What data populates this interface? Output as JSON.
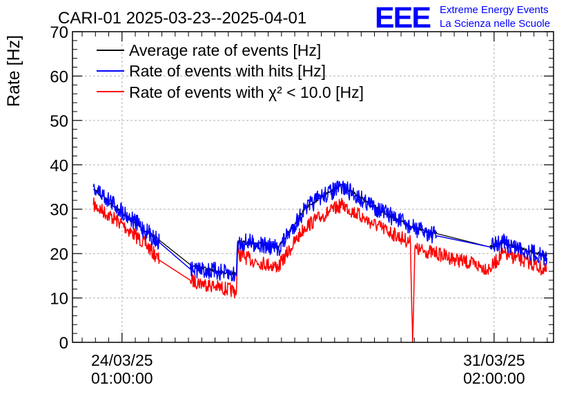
{
  "header": {
    "title": "CARI-01 2025-03-23--2025-04-01",
    "logo_text": "EEE",
    "org_line1": "Extreme Energy Events",
    "org_line2": "La Scienza nelle Scuole"
  },
  "colors": {
    "average": "#000000",
    "hits": "#0000ff",
    "chi2": "#ff0000",
    "logo": "#0000ff",
    "grid": "#b0b0b0"
  },
  "chart_data": {
    "type": "line",
    "title": "CARI-01 2025-03-23--2025-04-01",
    "xlabel": "",
    "ylabel": "Rate [Hz]",
    "ylim": [
      0,
      70
    ],
    "xlim": [
      "2025-03-23T02:30",
      "2025-04-01T05:00"
    ],
    "grid": true,
    "legend_position": "top-left",
    "y_ticks": [
      0,
      10,
      20,
      30,
      40,
      50,
      60,
      70
    ],
    "x_ticks": [
      {
        "x": "2025-03-24T01:00",
        "label_date": "24/03/25",
        "label_time": "01:00:00"
      },
      {
        "x": "2025-03-31T02:00",
        "label_date": "31/03/25",
        "label_time": "02:00:00"
      }
    ],
    "series": [
      {
        "name": "Average rate of events [Hz]",
        "color": "#000000",
        "noise": 0.4,
        "points": [
          [
            "2025-03-23T12:00",
            34.5
          ],
          [
            "2025-03-24T00:00",
            29.5
          ],
          [
            "2025-03-24T12:00",
            25
          ],
          [
            "2025-03-24T18:00",
            23
          ],
          [
            "2025-03-25T08:00",
            17.5
          ],
          [
            "2025-03-25T20:00",
            16
          ],
          [
            "2025-03-26T05:00",
            15.5
          ],
          [
            "2025-03-26T05:30",
            22.5
          ],
          [
            "2025-03-26T12:00",
            22.5
          ],
          [
            "2025-03-27T00:00",
            21.5
          ],
          [
            "2025-03-27T12:00",
            30
          ],
          [
            "2025-03-27T20:00",
            33
          ],
          [
            "2025-03-28T05:00",
            35.5
          ],
          [
            "2025-03-28T18:00",
            31
          ],
          [
            "2025-03-29T12:00",
            26
          ],
          [
            "2025-03-30T00:00",
            24.5
          ],
          [
            "2025-03-31T00:00",
            21.5
          ],
          [
            "2025-03-31T06:00",
            22.5
          ],
          [
            "2025-03-31T18:00",
            20.5
          ],
          [
            "2025-04-01T02:00",
            19.5
          ]
        ]
      },
      {
        "name": "Rate of events with hits [Hz]",
        "color": "#0000ff",
        "noise": 2.0,
        "points": [
          [
            "2025-03-23T12:00",
            35
          ],
          [
            "2025-03-24T00:00",
            30
          ],
          [
            "2025-03-24T12:00",
            25
          ],
          [
            "2025-03-24T18:00",
            22.5
          ],
          [
            "2025-03-25T08:00",
            16.5
          ],
          [
            "2025-03-25T20:00",
            16
          ],
          [
            "2025-03-26T05:00",
            15
          ],
          [
            "2025-03-26T05:30",
            22.5
          ],
          [
            "2025-03-26T12:00",
            22.5
          ],
          [
            "2025-03-27T00:00",
            21
          ],
          [
            "2025-03-27T12:00",
            30
          ],
          [
            "2025-03-27T20:00",
            33
          ],
          [
            "2025-03-28T05:00",
            35
          ],
          [
            "2025-03-28T18:00",
            31
          ],
          [
            "2025-03-29T12:00",
            26
          ],
          [
            "2025-03-30T00:00",
            24
          ],
          [
            "2025-03-31T00:00",
            21.5
          ],
          [
            "2025-03-31T06:00",
            22.5
          ],
          [
            "2025-03-31T18:00",
            20.5
          ],
          [
            "2025-04-01T02:00",
            19
          ]
        ]
      },
      {
        "name": "Rate of events with χ² < 10.0 [Hz]",
        "color": "#ff0000",
        "noise": 1.6,
        "points": [
          [
            "2025-03-23T12:00",
            31
          ],
          [
            "2025-03-24T00:00",
            27
          ],
          [
            "2025-03-24T12:00",
            22
          ],
          [
            "2025-03-24T18:00",
            18.5
          ],
          [
            "2025-03-25T08:00",
            14
          ],
          [
            "2025-03-25T20:00",
            12.5
          ],
          [
            "2025-03-26T05:00",
            11.5
          ],
          [
            "2025-03-26T05:30",
            20
          ],
          [
            "2025-03-26T12:00",
            18.5
          ],
          [
            "2025-03-27T00:00",
            17
          ],
          [
            "2025-03-27T12:00",
            26
          ],
          [
            "2025-03-27T20:00",
            28.5
          ],
          [
            "2025-03-28T05:00",
            31
          ],
          [
            "2025-03-28T18:00",
            27
          ],
          [
            "2025-03-29T12:00",
            22.5
          ],
          [
            "2025-03-29T13:00",
            0
          ],
          [
            "2025-03-29T14:00",
            21
          ],
          [
            "2025-03-30T00:00",
            20
          ],
          [
            "2025-03-31T00:00",
            16.5
          ],
          [
            "2025-03-31T06:00",
            20
          ],
          [
            "2025-03-31T18:00",
            18
          ],
          [
            "2025-04-01T02:00",
            16
          ]
        ]
      }
    ]
  }
}
